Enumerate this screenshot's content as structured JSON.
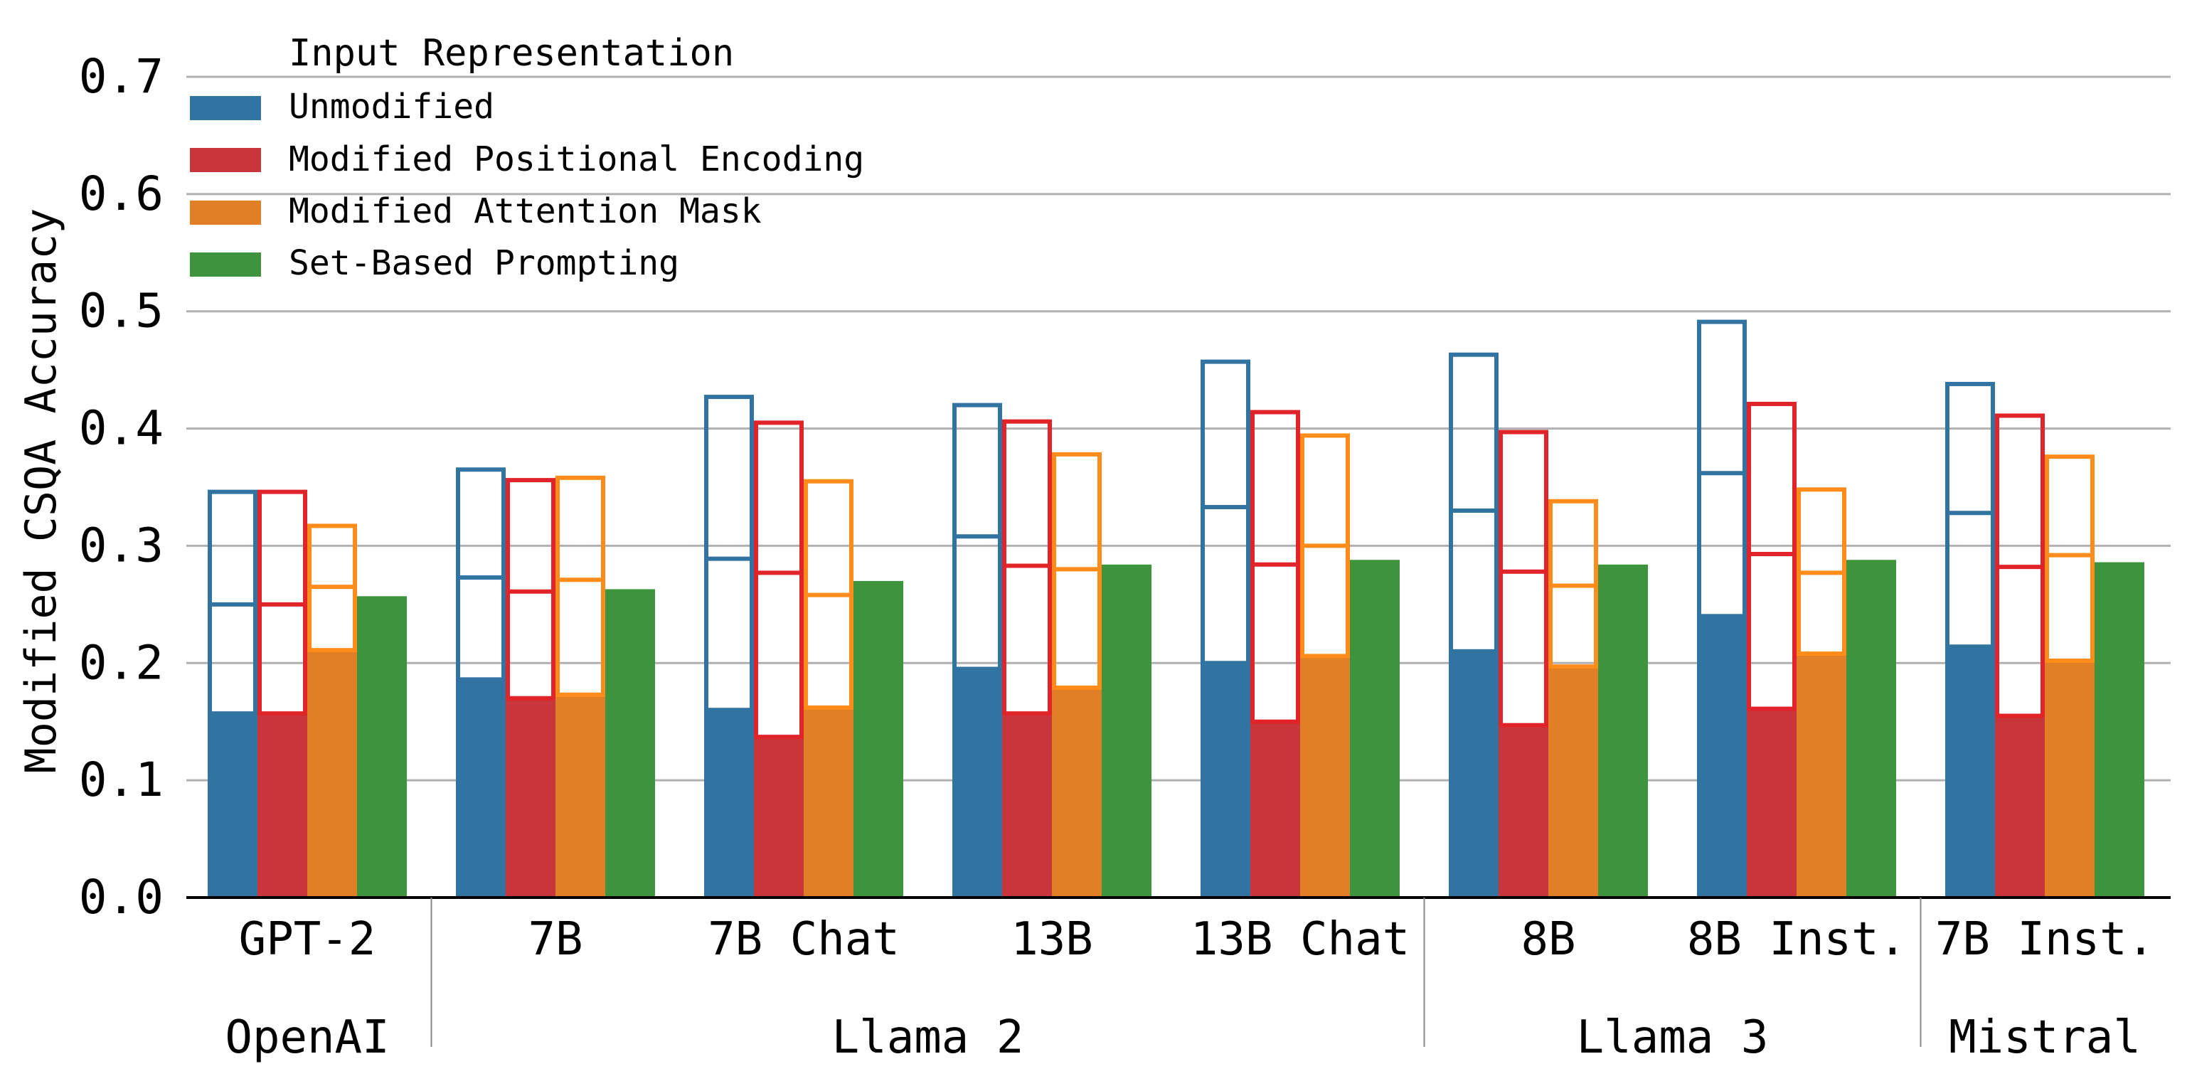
{
  "chart_data": {
    "type": "bar",
    "ylabel": "Modified CSQA Accuracy",
    "xlabel": "",
    "ylim": [
      0,
      0.7
    ],
    "yticks": [
      "0.0",
      "0.1",
      "0.2",
      "0.3",
      "0.4",
      "0.5",
      "0.6",
      "0.7"
    ],
    "grid": true,
    "legend": {
      "title": "Input Representation",
      "placement": "top-left",
      "entries": [
        "Unmodified",
        "Modified Positional Encoding",
        "Modified Attention Mask",
        "Set-Based Prompting"
      ]
    },
    "categories": [
      "GPT-2",
      "7B",
      "7B Chat",
      "13B",
      "13B Chat",
      "8B",
      "8B Inst.",
      "7B Inst."
    ],
    "groups": [
      {
        "label": "OpenAI",
        "count": 1
      },
      {
        "label": "Llama 2",
        "count": 4
      },
      {
        "label": "Llama 3",
        "count": 2
      },
      {
        "label": "Mistral",
        "count": 1
      }
    ],
    "series": [
      {
        "name": "Unmodified",
        "color": "#3274a1",
        "min": [
          0.157,
          0.186,
          0.16,
          0.195,
          0.2,
          0.21,
          0.24,
          0.214
        ],
        "mid": [
          0.25,
          0.273,
          0.289,
          0.308,
          0.333,
          0.33,
          0.362,
          0.328
        ],
        "max": [
          0.346,
          0.365,
          0.427,
          0.42,
          0.457,
          0.463,
          0.491,
          0.438
        ]
      },
      {
        "name": "Modified Positional Encoding",
        "color": "#e1232a",
        "fill": "#c8363b",
        "min": [
          0.157,
          0.17,
          0.137,
          0.157,
          0.15,
          0.147,
          0.161,
          0.155
        ],
        "mid": [
          0.25,
          0.261,
          0.277,
          0.283,
          0.284,
          0.278,
          0.293,
          0.282
        ],
        "max": [
          0.346,
          0.356,
          0.405,
          0.406,
          0.414,
          0.397,
          0.421,
          0.411
        ]
      },
      {
        "name": "Modified Attention Mask",
        "color": "#ff8c1a",
        "fill": "#e07f25",
        "min": [
          0.211,
          0.173,
          0.162,
          0.179,
          0.206,
          0.197,
          0.208,
          0.202
        ],
        "mid": [
          0.265,
          0.271,
          0.258,
          0.28,
          0.3,
          0.266,
          0.277,
          0.292
        ],
        "max": [
          0.317,
          0.358,
          0.355,
          0.378,
          0.394,
          0.338,
          0.348,
          0.376
        ]
      },
      {
        "name": "Set-Based Prompting",
        "color": "#3d943d",
        "values": [
          0.257,
          0.263,
          0.27,
          0.284,
          0.288,
          0.284,
          0.288,
          0.286
        ]
      }
    ]
  }
}
